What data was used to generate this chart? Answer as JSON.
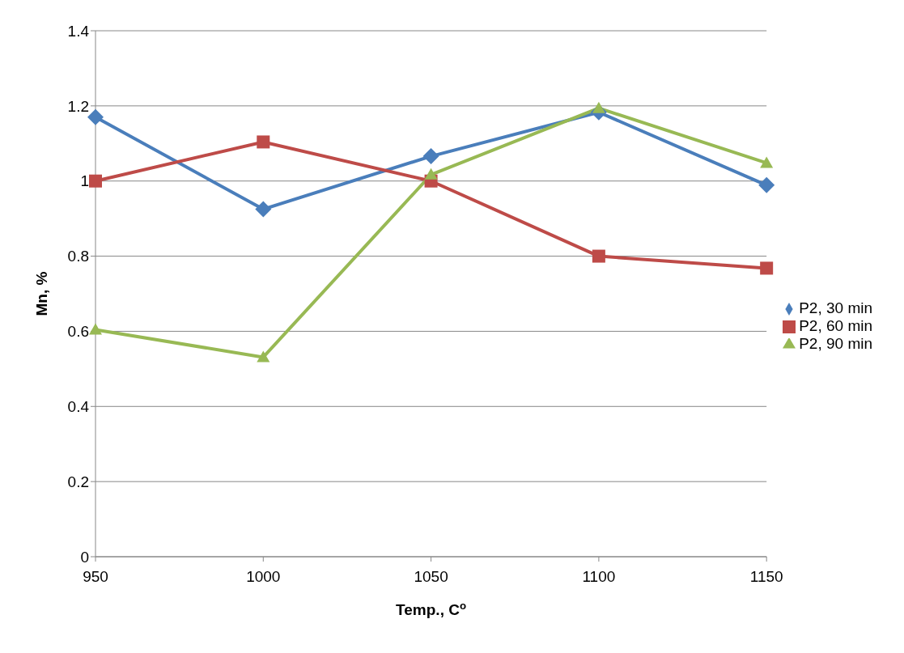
{
  "chart_data": {
    "type": "line",
    "xlabel": "Temp., C$^{o}$",
    "ylabel": "Mn, %",
    "categories": [
      "950",
      "1000",
      "1050",
      "1100",
      "1150"
    ],
    "series": [
      {
        "name": "P2, 30 min",
        "color": "#4a7ebb",
        "marker": "diamond",
        "values": [
          1.17,
          0.925,
          1.066,
          1.183,
          0.989
        ]
      },
      {
        "name": "P2, 60 min",
        "color": "#be4b48",
        "marker": "square",
        "values": [
          1.0,
          1.104,
          1.0,
          0.8,
          0.768
        ]
      },
      {
        "name": "P2, 90 min",
        "color": "#98b954",
        "marker": "triangle",
        "values": [
          0.604,
          0.531,
          1.017,
          1.194,
          1.048
        ]
      }
    ],
    "ylim": [
      0,
      1.4
    ],
    "yticks": [
      0,
      0.2,
      0.4,
      0.6,
      0.8,
      1,
      1.2,
      1.4
    ],
    "grid": "y",
    "legend": "right"
  }
}
